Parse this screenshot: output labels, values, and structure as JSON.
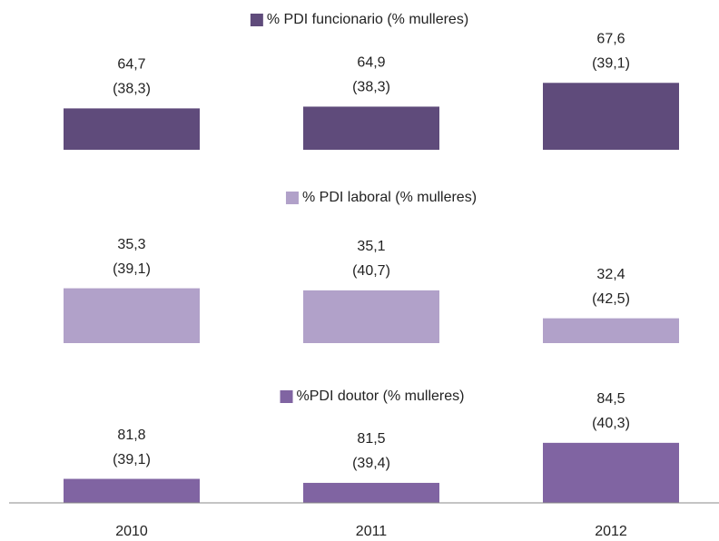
{
  "chart_data": [
    {
      "type": "bar",
      "legend": "% PDI funcionario (% mulleres)",
      "color": "#5f4b7b",
      "values": [
        64.7,
        64.9,
        67.6
      ],
      "value_labels": [
        "64,7",
        "64,9",
        "67,6"
      ],
      "women_values": [
        38.3,
        38.3,
        39.1
      ],
      "women_labels": [
        "(38,3)",
        "(38,3)",
        "(39,1)"
      ],
      "ylim": [
        60,
        70
      ]
    },
    {
      "type": "bar",
      "legend": "% PDI laboral (% mulleres)",
      "color": "#b1a1c9",
      "values": [
        35.3,
        35.1,
        32.4
      ],
      "value_labels": [
        "35,3",
        "35,1",
        "32,4"
      ],
      "women_values": [
        39.1,
        40.7,
        42.5
      ],
      "women_labels": [
        "(39,1)",
        "(40,7)",
        "(42,5)"
      ],
      "ylim": [
        30,
        40
      ]
    },
    {
      "type": "bar",
      "legend": "%PDI doutor (% mulleres)",
      "color": "#8064a2",
      "categories": [
        "2010",
        "2011",
        "2012"
      ],
      "values": [
        81.8,
        81.5,
        84.5
      ],
      "value_labels": [
        "81,8",
        "81,5",
        "84,5"
      ],
      "women_values": [
        39.1,
        39.4,
        40.3
      ],
      "women_labels": [
        "(39,1)",
        "(39,4)",
        "(40,3)"
      ],
      "ylim": [
        80,
        90
      ]
    }
  ]
}
